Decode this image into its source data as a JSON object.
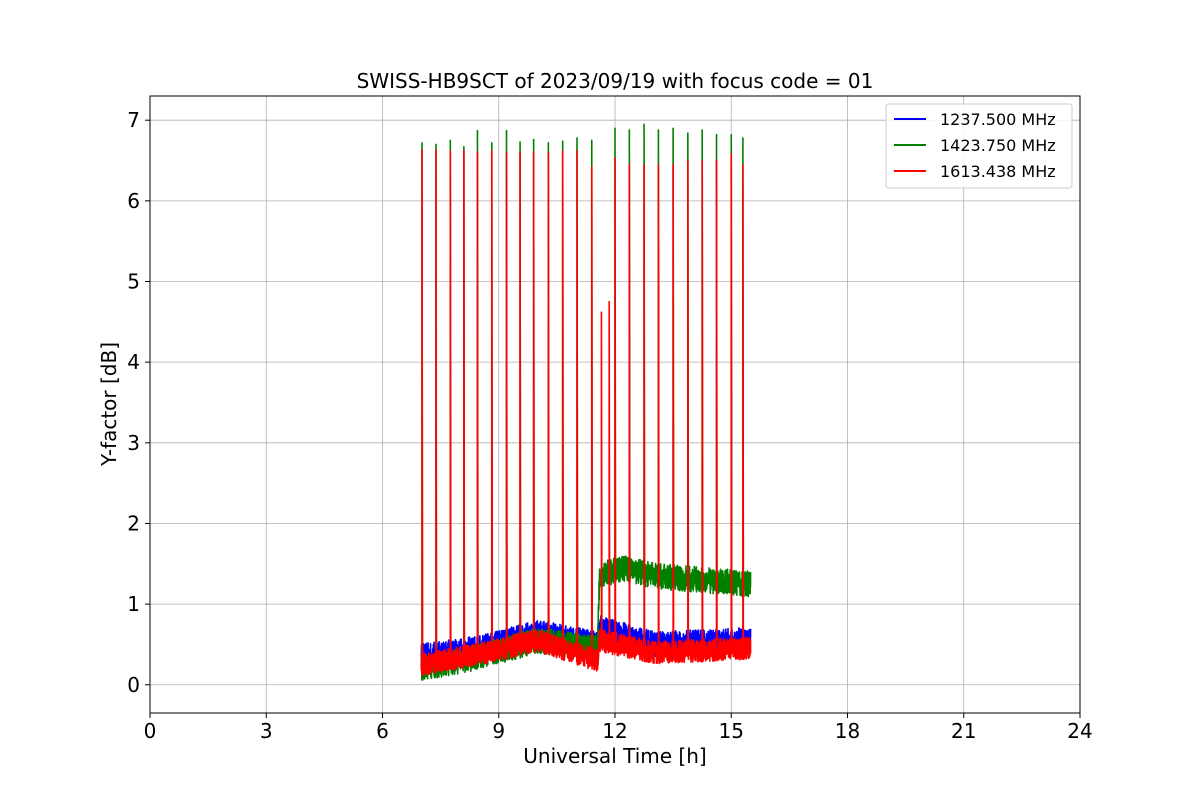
{
  "chart_data": {
    "type": "line",
    "title": "SWISS-HB9SCT of 2023/09/19 with focus code = 01",
    "xlabel": "Universal Time [h]",
    "ylabel": "Y-factor [dB]",
    "xlim": [
      0,
      24
    ],
    "ylim": [
      -0.35,
      7.3
    ],
    "xticks": [
      0,
      3,
      6,
      9,
      12,
      15,
      18,
      21,
      24
    ],
    "yticks": [
      0,
      1,
      2,
      3,
      4,
      5,
      6,
      7
    ],
    "grid": true,
    "legend_position": "top-right",
    "series": [
      {
        "name": "1237.500 MHz",
        "color": "#0000ff",
        "baseline": [
          [
            7.0,
            0.35
          ],
          [
            8.5,
            0.45
          ],
          [
            10.0,
            0.65
          ],
          [
            11.55,
            0.5
          ],
          [
            11.6,
            0.7
          ],
          [
            13.0,
            0.5
          ],
          [
            15.5,
            0.55
          ]
        ],
        "noise": 0.16,
        "peaks": []
      },
      {
        "name": "1423.750 MHz",
        "color": "#008000",
        "baseline": [
          [
            7.0,
            0.2
          ],
          [
            8.5,
            0.35
          ],
          [
            10.0,
            0.55
          ],
          [
            11.55,
            0.45
          ],
          [
            11.6,
            1.35
          ],
          [
            12.2,
            1.45
          ],
          [
            13.0,
            1.35
          ],
          [
            15.5,
            1.25
          ]
        ],
        "noise": 0.16,
        "peaks": [
          [
            7.02,
            6.72
          ],
          [
            7.38,
            6.7
          ],
          [
            7.75,
            6.75
          ],
          [
            8.1,
            6.67
          ],
          [
            8.45,
            6.87
          ],
          [
            8.82,
            6.72
          ],
          [
            9.2,
            6.87
          ],
          [
            9.55,
            6.73
          ],
          [
            9.9,
            6.76
          ],
          [
            10.28,
            6.72
          ],
          [
            10.65,
            6.74
          ],
          [
            11.02,
            6.78
          ],
          [
            11.4,
            6.75
          ],
          [
            12.0,
            6.9
          ],
          [
            12.37,
            6.88
          ],
          [
            12.75,
            6.95
          ],
          [
            13.12,
            6.88
          ],
          [
            13.5,
            6.9
          ],
          [
            13.88,
            6.84
          ],
          [
            14.25,
            6.88
          ],
          [
            14.62,
            6.82
          ],
          [
            15.0,
            6.82
          ],
          [
            15.3,
            6.78
          ]
        ]
      },
      {
        "name": "1613.438 MHz",
        "color": "#ff0000",
        "baseline": [
          [
            7.0,
            0.25
          ],
          [
            8.5,
            0.38
          ],
          [
            10.0,
            0.55
          ],
          [
            11.55,
            0.3
          ],
          [
            11.6,
            0.55
          ],
          [
            13.0,
            0.4
          ],
          [
            15.5,
            0.45
          ]
        ],
        "noise": 0.14,
        "peaks": [
          [
            7.02,
            6.63
          ],
          [
            7.38,
            6.63
          ],
          [
            7.75,
            6.62
          ],
          [
            8.1,
            6.62
          ],
          [
            8.45,
            6.6
          ],
          [
            8.82,
            6.62
          ],
          [
            9.2,
            6.6
          ],
          [
            9.55,
            6.6
          ],
          [
            9.9,
            6.61
          ],
          [
            10.28,
            6.6
          ],
          [
            10.65,
            6.62
          ],
          [
            11.02,
            6.62
          ],
          [
            11.4,
            6.42
          ],
          [
            11.65,
            4.62
          ],
          [
            11.85,
            4.75
          ],
          [
            12.0,
            6.53
          ],
          [
            12.37,
            6.45
          ],
          [
            12.75,
            6.45
          ],
          [
            13.12,
            6.45
          ],
          [
            13.5,
            6.45
          ],
          [
            13.88,
            6.5
          ],
          [
            14.25,
            6.5
          ],
          [
            14.62,
            6.5
          ],
          [
            15.0,
            6.58
          ],
          [
            15.3,
            6.45
          ]
        ]
      }
    ]
  }
}
